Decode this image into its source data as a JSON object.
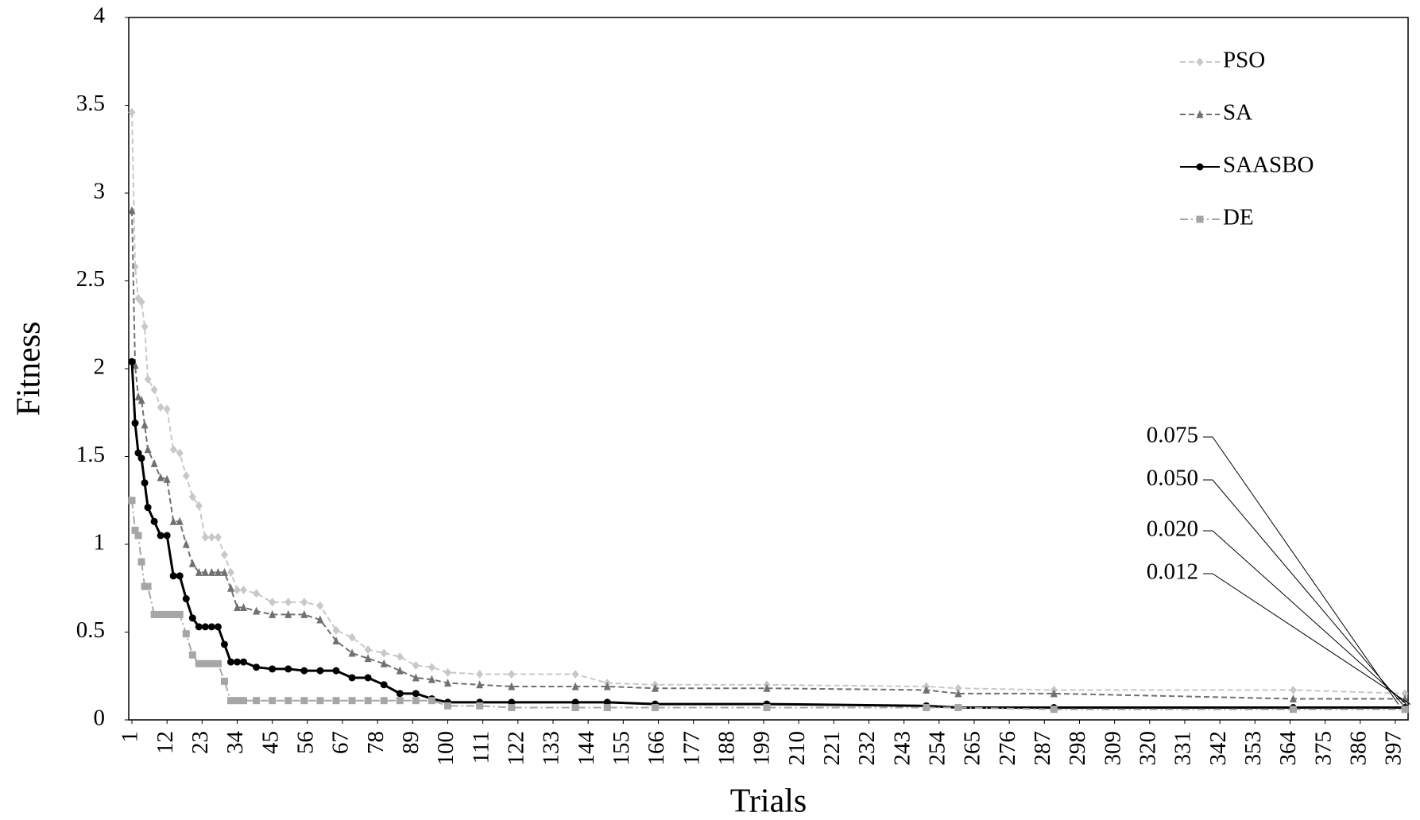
{
  "chart_data": {
    "type": "line",
    "xlabel": "Trials",
    "ylabel": "Fitness",
    "x": [
      1,
      2,
      3,
      4,
      5,
      6,
      8,
      10,
      12,
      14,
      16,
      18,
      20,
      22,
      24,
      26,
      28,
      30,
      32,
      34,
      36,
      40,
      45,
      50,
      55,
      60,
      65,
      70,
      75,
      80,
      85,
      90,
      95,
      100,
      110,
      120,
      140,
      150,
      165,
      200,
      250,
      260,
      290,
      365,
      400
    ],
    "series": [
      {
        "name": "PSO",
        "color": "#c8c8c8",
        "marker": "diamond",
        "dash": "dashed",
        "values": [
          3.46,
          2.58,
          2.4,
          2.38,
          2.24,
          1.94,
          1.88,
          1.78,
          1.77,
          1.54,
          1.52,
          1.39,
          1.27,
          1.22,
          1.04,
          1.04,
          1.04,
          0.94,
          0.84,
          0.74,
          0.74,
          0.72,
          0.67,
          0.67,
          0.67,
          0.65,
          0.51,
          0.47,
          0.4,
          0.38,
          0.36,
          0.31,
          0.3,
          0.27,
          0.26,
          0.26,
          0.26,
          0.21,
          0.2,
          0.2,
          0.19,
          0.18,
          0.17,
          0.17,
          0.15
        ]
      },
      {
        "name": "SA",
        "color": "#707070",
        "marker": "triangle",
        "dash": "dashed",
        "values": [
          2.9,
          2.02,
          1.84,
          1.82,
          1.68,
          1.54,
          1.46,
          1.38,
          1.37,
          1.13,
          1.13,
          1.0,
          0.89,
          0.84,
          0.84,
          0.84,
          0.84,
          0.84,
          0.75,
          0.64,
          0.64,
          0.62,
          0.6,
          0.6,
          0.6,
          0.57,
          0.45,
          0.38,
          0.35,
          0.32,
          0.28,
          0.24,
          0.23,
          0.21,
          0.2,
          0.19,
          0.19,
          0.19,
          0.18,
          0.18,
          0.17,
          0.15,
          0.15,
          0.12,
          0.12
        ]
      },
      {
        "name": "SAASBO",
        "color": "#000000",
        "marker": "circle",
        "dash": "solid",
        "values": [
          2.04,
          1.69,
          1.52,
          1.49,
          1.35,
          1.21,
          1.13,
          1.05,
          1.05,
          0.82,
          0.82,
          0.69,
          0.58,
          0.53,
          0.53,
          0.53,
          0.53,
          0.43,
          0.33,
          0.33,
          0.33,
          0.3,
          0.29,
          0.29,
          0.28,
          0.28,
          0.28,
          0.24,
          0.24,
          0.2,
          0.15,
          0.15,
          0.12,
          0.1,
          0.1,
          0.1,
          0.1,
          0.1,
          0.09,
          0.09,
          0.08,
          0.07,
          0.07,
          0.07,
          0.07
        ]
      },
      {
        "name": "DE",
        "color": "#a6a6a6",
        "marker": "square",
        "dash": "dashdot",
        "values": [
          1.25,
          1.08,
          1.05,
          0.9,
          0.76,
          0.76,
          0.6,
          0.6,
          0.6,
          0.6,
          0.6,
          0.49,
          0.37,
          0.32,
          0.32,
          0.32,
          0.32,
          0.22,
          0.11,
          0.11,
          0.11,
          0.11,
          0.11,
          0.11,
          0.11,
          0.11,
          0.11,
          0.11,
          0.11,
          0.11,
          0.11,
          0.11,
          0.11,
          0.08,
          0.08,
          0.07,
          0.07,
          0.07,
          0.07,
          0.07,
          0.07,
          0.07,
          0.06,
          0.06,
          0.06
        ]
      }
    ],
    "xlim": [
      0,
      401
    ],
    "ylim": [
      0,
      4
    ],
    "xticks": [
      1,
      12,
      23,
      34,
      45,
      56,
      67,
      78,
      89,
      100,
      111,
      122,
      133,
      144,
      155,
      166,
      177,
      188,
      199,
      210,
      221,
      232,
      243,
      254,
      265,
      276,
      287,
      298,
      309,
      320,
      331,
      342,
      353,
      364,
      375,
      386,
      397
    ],
    "yticks": [
      0,
      0.5,
      1,
      1.5,
      2,
      2.5,
      3,
      3.5,
      4
    ],
    "legend": "upper right",
    "annotations": [
      "0.075",
      "0.050",
      "0.020",
      "0.012"
    ]
  }
}
